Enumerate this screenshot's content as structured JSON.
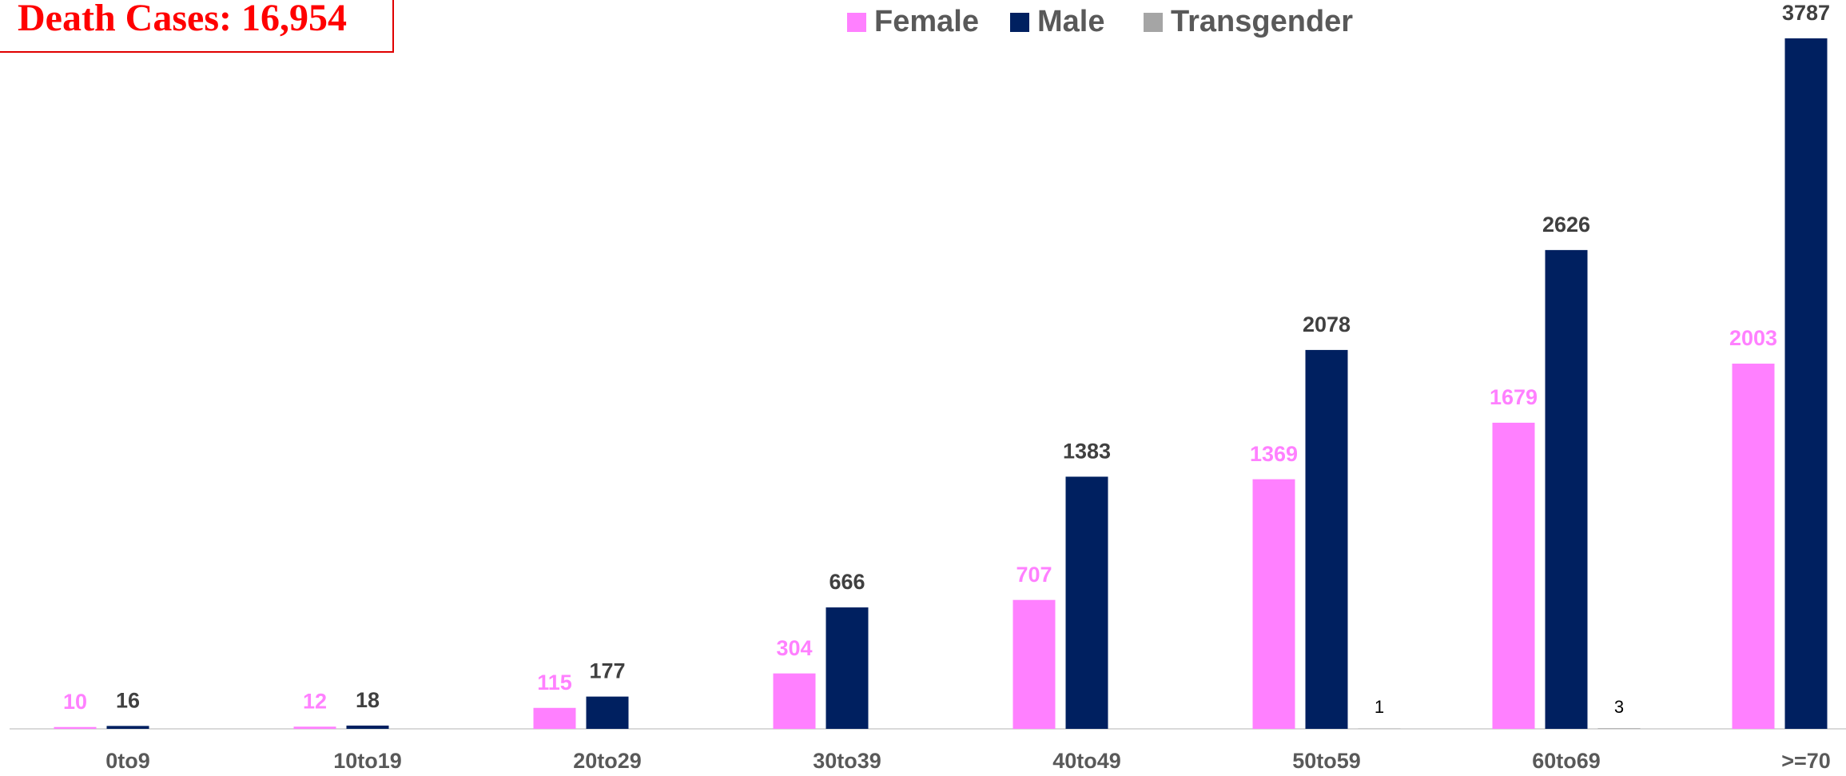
{
  "chart_data": {
    "type": "bar",
    "title": "Death Cases: 16,954",
    "categories": [
      "0to9",
      "10to19",
      "20to29",
      "30to39",
      "40to49",
      "50to59",
      "60to69",
      ">=70"
    ],
    "series": [
      {
        "name": "Female",
        "color": "#ff80ff",
        "values": [
          10,
          12,
          115,
          304,
          707,
          1369,
          1679,
          2003
        ]
      },
      {
        "name": "Male",
        "color": "#002060",
        "values": [
          16,
          18,
          177,
          666,
          1383,
          2078,
          2626,
          3787
        ]
      },
      {
        "name": "Transgender",
        "color": "#a5a5a5",
        "values": [
          null,
          null,
          null,
          null,
          null,
          1,
          3,
          null
        ]
      }
    ],
    "legend": "top"
  }
}
